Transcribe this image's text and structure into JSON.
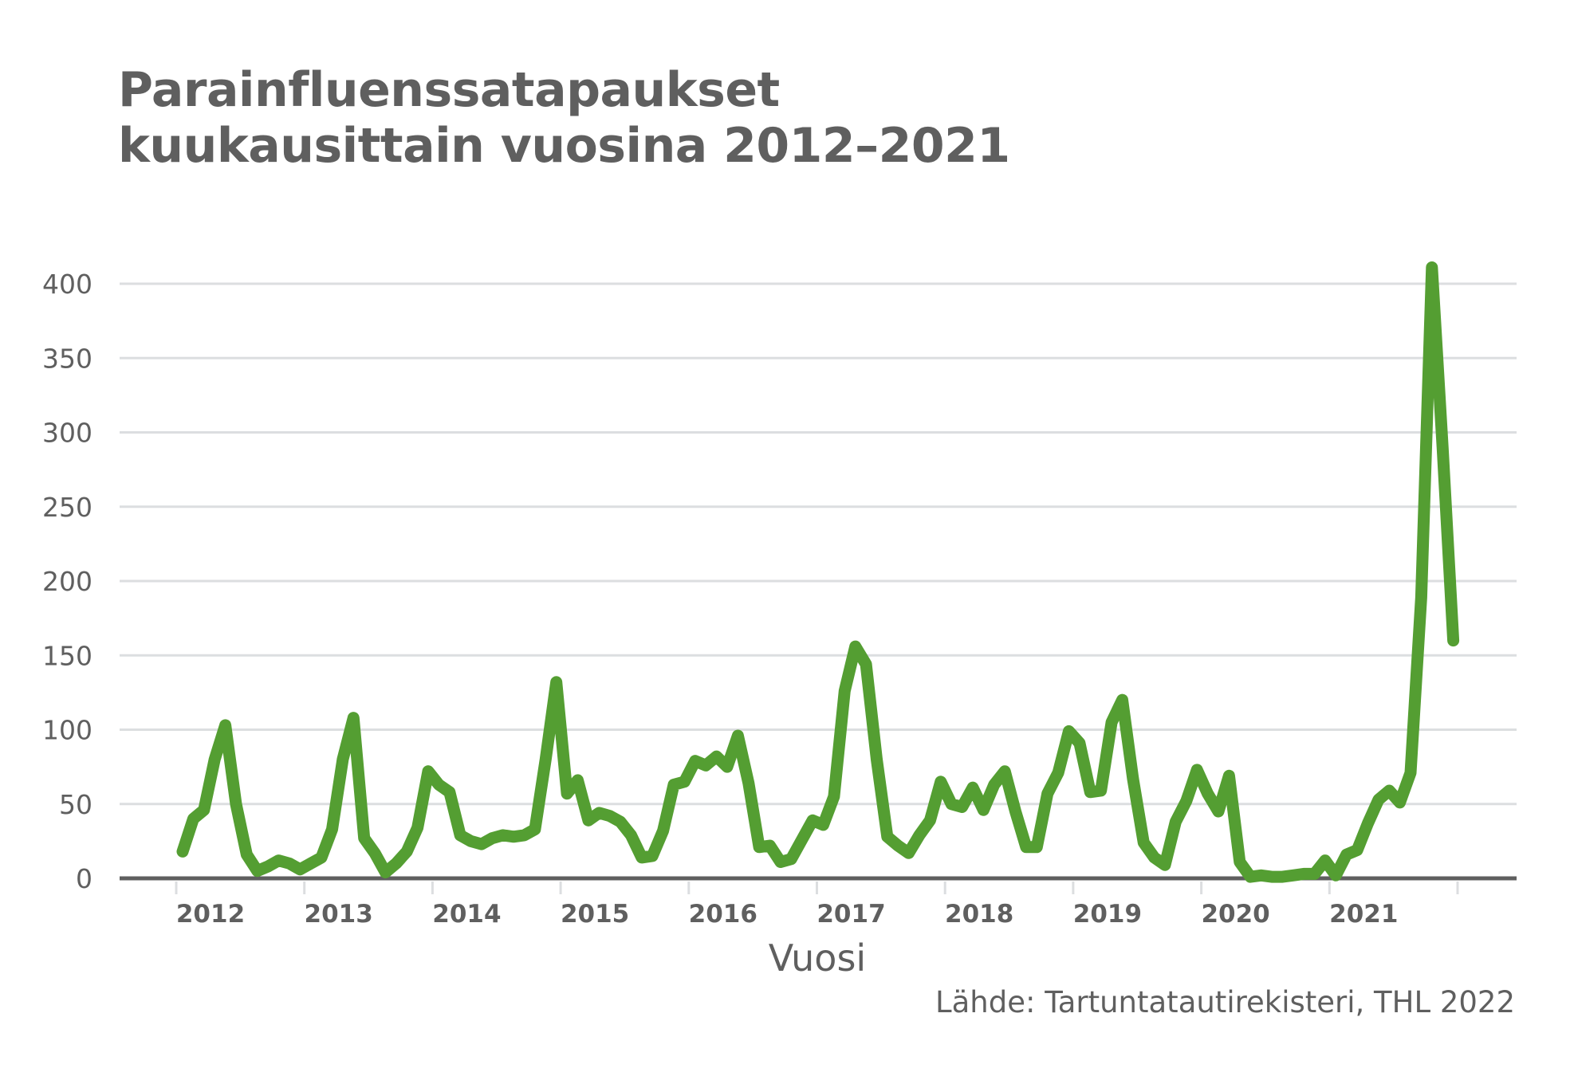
{
  "title": {
    "line1": "Parainfluenssatapaukset",
    "line2": "kuukausittain vuosina 2012–2021"
  },
  "axis": {
    "x_title": "Vuosi",
    "source": "Lähde: Tartuntatautirekisteri, THL 2022"
  },
  "colors": {
    "line": "#549e32",
    "grid": "#dcdee0",
    "axis": "#5f5f5f",
    "text": "#5f5f5f"
  },
  "chart_data": {
    "type": "line",
    "title": "Parainfluenssatapaukset kuukausittain vuosina 2012–2021",
    "xlabel": "Vuosi",
    "ylabel": "",
    "ylim": [
      0,
      400
    ],
    "yticks": [
      0,
      50,
      100,
      150,
      200,
      250,
      300,
      350,
      400
    ],
    "xticks": [
      "2012",
      "2013",
      "2014",
      "2015",
      "2016",
      "2017",
      "2018",
      "2019",
      "2020",
      "2021"
    ],
    "grid": true,
    "legend": null,
    "source": "Lähde: Tartuntatautirekisteri, THL 2022",
    "series": [
      {
        "name": "Parainfluenssatapaukset",
        "frequency": "monthly",
        "start": "2012-01",
        "values": [
          18,
          40,
          46,
          80,
          103,
          50,
          16,
          5,
          8,
          12,
          10,
          6,
          10,
          14,
          33,
          80,
          108,
          27,
          17,
          4,
          10,
          18,
          34,
          72,
          63,
          58,
          29,
          25,
          23,
          27,
          29,
          28,
          29,
          33,
          80,
          132,
          57,
          66,
          39,
          44,
          42,
          38,
          29,
          14,
          15,
          32,
          63,
          65,
          79,
          76,
          82,
          75,
          96,
          64,
          21,
          22,
          11,
          13,
          26,
          39,
          36,
          55,
          126,
          156,
          144,
          80,
          28,
          22,
          17,
          29,
          39,
          65,
          50,
          48,
          61,
          46,
          63,
          72,
          45,
          21,
          21,
          57,
          71,
          99,
          91,
          58,
          59,
          105,
          120,
          67,
          24,
          14,
          9,
          38,
          52,
          73,
          57,
          45,
          69,
          11,
          1,
          2,
          1,
          1,
          2,
          3,
          3,
          12,
          2,
          16,
          19,
          37,
          53,
          59,
          51,
          71,
          189,
          411,
          290,
          160
        ]
      }
    ]
  }
}
